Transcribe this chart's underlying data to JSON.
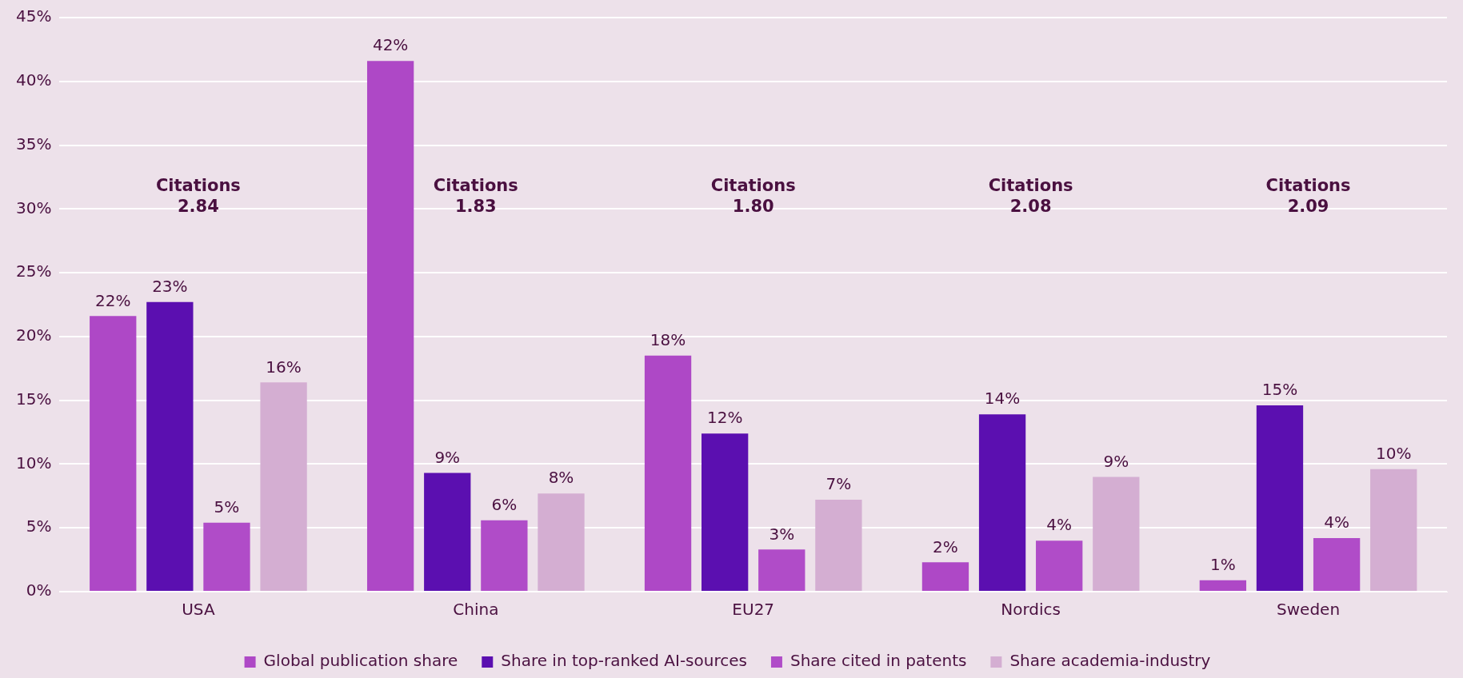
{
  "chart_data": {
    "type": "bar",
    "categories": [
      "USA",
      "China",
      "EU27",
      "Nordics",
      "Sweden"
    ],
    "series": [
      {
        "name": "Global publication share",
        "color": "#ae48c6",
        "values": [
          21.6,
          41.6,
          18.5,
          2.3,
          0.9
        ],
        "value_labels": [
          "22%",
          "42%",
          "18%",
          "2%",
          "1%"
        ]
      },
      {
        "name": "Share in top-ranked AI-sources",
        "color": "#5b0fb0",
        "values": [
          22.7,
          9.3,
          12.4,
          13.9,
          14.6
        ],
        "value_labels": [
          "23%",
          "9%",
          "12%",
          "14%",
          "15%"
        ]
      },
      {
        "name": "Share cited in patents",
        "color": "#b04cc8",
        "values": [
          5.4,
          5.6,
          3.3,
          4.0,
          4.2
        ],
        "value_labels": [
          "5%",
          "6%",
          "3%",
          "4%",
          "4%"
        ]
      },
      {
        "name": "Share academia-industry",
        "color": "#d4aed2",
        "values": [
          16.4,
          7.7,
          7.2,
          9.0,
          9.6
        ],
        "value_labels": [
          "16%",
          "8%",
          "7%",
          "9%",
          "10%"
        ]
      }
    ],
    "ylim": [
      0,
      45
    ],
    "yticks": [
      {
        "value": 0,
        "label": "0%"
      },
      {
        "value": 5,
        "label": "5%"
      },
      {
        "value": 10,
        "label": "10%"
      },
      {
        "value": 15,
        "label": "15%"
      },
      {
        "value": 20,
        "label": "20%"
      },
      {
        "value": 25,
        "label": "25%"
      },
      {
        "value": 30,
        "label": "30%"
      },
      {
        "value": 35,
        "label": "35%"
      },
      {
        "value": 40,
        "label": "40%"
      },
      {
        "value": 45,
        "label": "45%"
      }
    ],
    "annotations": [
      "Citations\n2.84",
      "Citations\n1.83",
      "Citations\n1.80",
      "Citations\n2.08",
      "Citations\n2.09"
    ],
    "grid": "y",
    "legend": "bottom"
  }
}
